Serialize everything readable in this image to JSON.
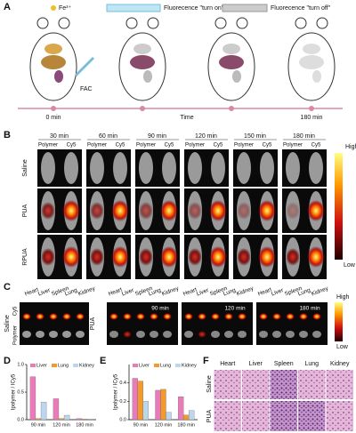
{
  "panel_labels": [
    "A",
    "B",
    "C",
    "D",
    "E",
    "F"
  ],
  "panel_a": {
    "legend": [
      "Fe³⁺",
      "Fluorecence \"turn on\"",
      "Fluorecence \"turn off\""
    ],
    "injection": "FAC",
    "times": [
      "0 min",
      "180 min"
    ],
    "axis": "Time"
  },
  "panel_b": {
    "times": [
      "30 min",
      "60 min",
      "90 min",
      "120 min",
      "150 min",
      "180 min"
    ],
    "columns": [
      "Polymer",
      "Cy5"
    ],
    "rows": [
      "Saline",
      "PUA",
      "RPUA"
    ],
    "scale": [
      "High",
      "Low"
    ]
  },
  "panel_c": {
    "organs": [
      "Heart",
      "Liver",
      "Spleen",
      "Lung",
      "Kidney"
    ],
    "channels": [
      "Cy5",
      "Polymer"
    ],
    "groups": [
      "Saline",
      "PUA"
    ],
    "times": [
      "90 min",
      "120 min",
      "180 min"
    ],
    "scale": [
      "High",
      "Low"
    ]
  },
  "chart_data": [
    {
      "type": "bar",
      "y_label": "Ipolymer / ICy5",
      "categories": [
        "90 min",
        "120 min",
        "180 min"
      ],
      "series": [
        {
          "name": "Liver",
          "color": "#e87bb8",
          "values": [
            0.78,
            0.38,
            0.02
          ]
        },
        {
          "name": "Lung",
          "color": "#f39a2b",
          "values": [
            0.02,
            0.02,
            0.01
          ]
        },
        {
          "name": "Kidney",
          "color": "#bcd6ee",
          "values": [
            0.32,
            0.08,
            0.01
          ]
        }
      ],
      "ylim": [
        0,
        1.0
      ],
      "yticks": [
        {
          "value": 0,
          "label": "0.0"
        },
        {
          "value": 0.5,
          "label": "0.5"
        },
        {
          "value": 1,
          "label": "1.0"
        }
      ]
    },
    {
      "type": "bar",
      "y_label": "Ipolymer / ICy5",
      "categories": [
        "90 min",
        "120 min",
        "180 min"
      ],
      "series": [
        {
          "name": "Liver",
          "color": "#e87bb8",
          "values": [
            0.45,
            0.32,
            0.25
          ]
        },
        {
          "name": "Lung",
          "color": "#f39a2b",
          "values": [
            0.42,
            0.33,
            0.05
          ]
        },
        {
          "name": "Kidney",
          "color": "#bcd6ee",
          "values": [
            0.2,
            0.08,
            0.1
          ]
        }
      ],
      "ylim": [
        0,
        0.6
      ],
      "yticks": [
        {
          "value": 0,
          "label": "0.0"
        },
        {
          "value": 0.2,
          "label": "0.2"
        },
        {
          "value": 0.4,
          "label": "0.4"
        }
      ]
    }
  ],
  "panel_f": {
    "organs": [
      "Heart",
      "Liver",
      "Spleen",
      "Lung",
      "Kidney"
    ],
    "rows": [
      "Saline",
      "PUA"
    ]
  }
}
